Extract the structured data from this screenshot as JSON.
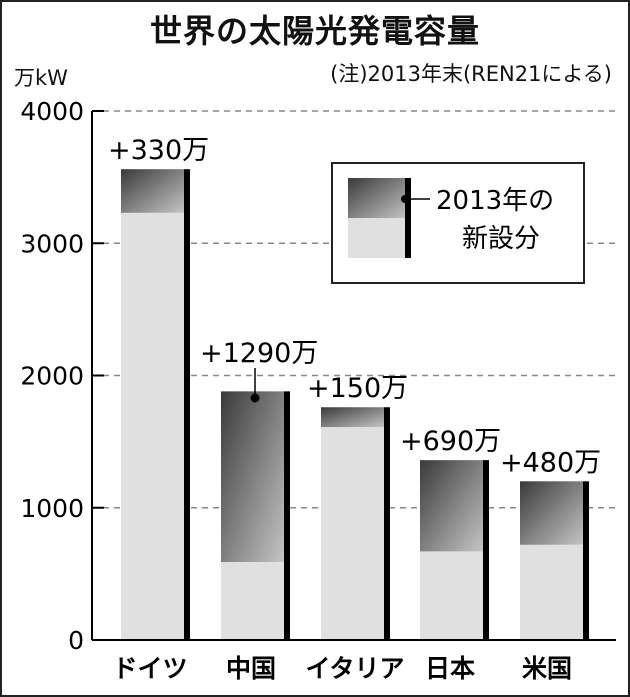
{
  "chart_data": {
    "type": "bar",
    "title": "世界の太陽光発電容量",
    "note": "(注)2013年末(REN21による)",
    "ylabel": "万kW",
    "ylim": [
      0,
      4000
    ],
    "yticks": [
      "0",
      "1000",
      "2000",
      "3000",
      "4000"
    ],
    "yticks_values": [
      0,
      1000,
      2000,
      3000,
      4000
    ],
    "categories": [
      "ドイツ",
      "中国",
      "イタリア",
      "日本",
      "米国"
    ],
    "totals": [
      3560,
      1880,
      1760,
      1360,
      1200
    ],
    "new_additions": [
      330,
      1290,
      150,
      690,
      480
    ],
    "data_labels": [
      "+330万",
      "+1290万",
      "+150万",
      "+690万",
      "+480万"
    ],
    "legend": {
      "line1": "2013年の",
      "line2": "新設分",
      "placement": "top-right"
    },
    "colors": {
      "base": "#e0e0e0",
      "new_dark": "#3a3a3a",
      "new_light": "#bdbdbd",
      "edge": "#000000",
      "grid": "#888888"
    }
  }
}
